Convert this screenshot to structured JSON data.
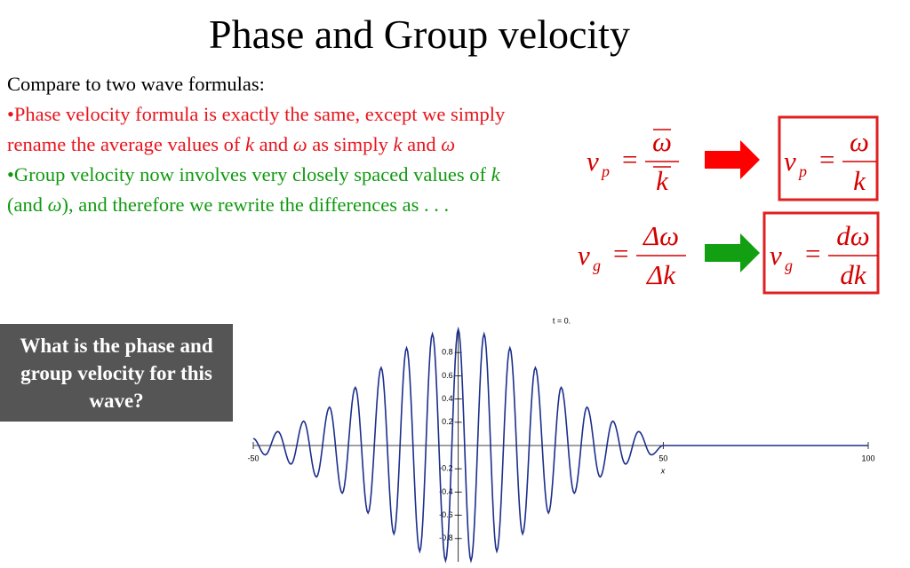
{
  "title": "Phase and Group velocity",
  "intro": "Compare to two wave formulas:",
  "bullets": [
    {
      "color": "#e8141c",
      "runs": [
        {
          "text": "•Phase velocity formula is exactly the same, except we simply rename the average values of "
        },
        {
          "text": "k",
          "italic": true
        },
        {
          "text": " and "
        },
        {
          "text": "ω",
          "italic": true
        },
        {
          "text": " as simply "
        },
        {
          "text": "k",
          "italic": true
        },
        {
          "text": " and "
        },
        {
          "text": "ω",
          "italic": true
        }
      ]
    },
    {
      "color": "#109a10",
      "runs": [
        {
          "text": "•Group velocity now involves very closely spaced values of "
        },
        {
          "text": "k",
          "italic": true
        },
        {
          "text": " (and "
        },
        {
          "text": "ω",
          "italic": true
        },
        {
          "text": "), and therefore we rewrite the differences as . . ."
        }
      ]
    }
  ],
  "formulas": [
    {
      "lhs": "v",
      "sub": "p",
      "eq": "=",
      "num": "ω",
      "den": "k",
      "bar": true,
      "color": "#d40000"
    },
    {
      "lhs": "v",
      "sub": "p",
      "eq": "=",
      "num": "ω",
      "den": "k",
      "bar": false,
      "color": "#d40000"
    },
    {
      "lhs": "v",
      "sub": "g",
      "eq": "=",
      "num": "Δω",
      "den": "Δk",
      "bar": false,
      "color": "#d40000"
    },
    {
      "lhs": "v",
      "sub": "g",
      "eq": "=",
      "num": "dω",
      "den": "dk",
      "bar": false,
      "color": "#d40000"
    }
  ],
  "question": "What is the phase and group velocity for this wave?",
  "chart_data": {
    "type": "line",
    "title": "t = 0.",
    "x_label": "x",
    "color": "#1c2f8c",
    "x": [
      -50,
      -47.1,
      -44.0,
      -40.8,
      -37.7,
      -34.6,
      -31.4,
      -28.3,
      -25.1,
      -22.0,
      -18.8,
      -15.7,
      -12.6,
      -9.4,
      -6.3,
      -3.1,
      0,
      3.1,
      6.3,
      9.4,
      12.6,
      15.7,
      18.8,
      22.0,
      25.1,
      28.3,
      31.4,
      34.6,
      37.7,
      40.8,
      44.0,
      47.1,
      50,
      100
    ],
    "values": [
      0.06,
      -0.08,
      0.12,
      -0.16,
      0.21,
      -0.27,
      0.33,
      -0.41,
      0.5,
      -0.58,
      0.67,
      -0.76,
      0.84,
      -0.91,
      0.96,
      -0.99,
      1,
      -0.99,
      0.96,
      -0.91,
      0.84,
      -0.76,
      0.67,
      -0.58,
      0.5,
      -0.41,
      0.33,
      -0.27,
      0.21,
      -0.16,
      0.12,
      -0.08,
      0,
      0
    ],
    "xlim": [
      -50,
      100
    ],
    "ylim": [
      -1,
      1
    ],
    "xticks": [
      -50,
      50,
      100
    ],
    "yticks": [
      -0.8,
      -0.6,
      -0.4,
      -0.2,
      0.2,
      0.4,
      0.6,
      0.8
    ]
  }
}
